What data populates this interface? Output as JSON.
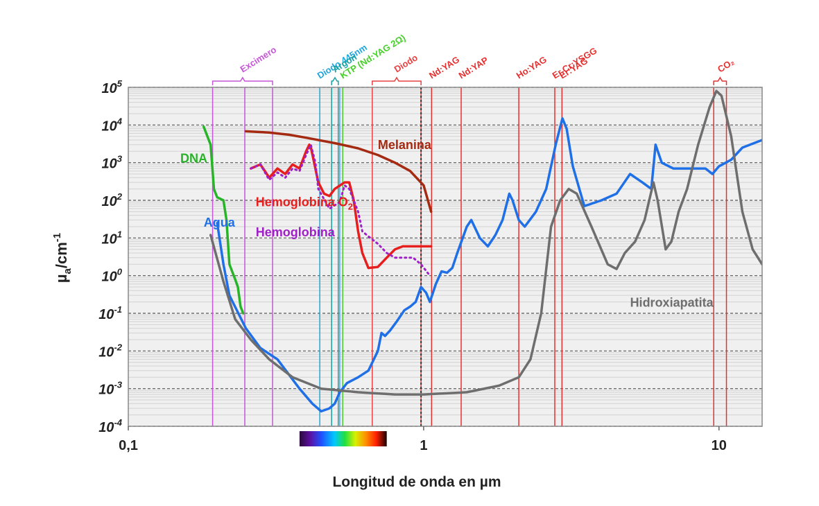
{
  "chart_data": {
    "type": "line",
    "title": "",
    "xlabel": "Longitud de onda en µm",
    "ylabel": "µa/cm-1",
    "ylabel_parts": {
      "mu": "µ",
      "sub": "a",
      "unit": "/cm",
      "sup": "-1"
    },
    "x_scale": "log",
    "y_scale": "log",
    "xlim": [
      0.1,
      14
    ],
    "ylim": [
      0.0001,
      100000
    ],
    "grid": true,
    "x_ticks": [
      {
        "value": 0.1,
        "label": "0,1"
      },
      {
        "value": 1,
        "label": "1"
      },
      {
        "value": 10,
        "label": "10"
      }
    ],
    "y_ticks": [
      {
        "value": 100000,
        "base": "10",
        "exp": "5"
      },
      {
        "value": 10000,
        "base": "10",
        "exp": "4"
      },
      {
        "value": 1000,
        "base": "10",
        "exp": "3"
      },
      {
        "value": 100,
        "base": "10",
        "exp": "2"
      },
      {
        "value": 10,
        "base": "10",
        "exp": "1"
      },
      {
        "value": 1,
        "base": "10",
        "exp": "0"
      },
      {
        "value": 0.1,
        "base": "10",
        "exp": "-1"
      },
      {
        "value": 0.01,
        "base": "10",
        "exp": "-2"
      },
      {
        "value": 0.001,
        "base": "10",
        "exp": "-3"
      },
      {
        "value": 0.0001,
        "base": "10",
        "exp": "-4"
      }
    ],
    "series": [
      {
        "name": "Agua",
        "color": "#1f6fe6",
        "style": "solid",
        "points": [
          [
            0.2,
            25
          ],
          [
            0.21,
            2
          ],
          [
            0.22,
            0.3
          ],
          [
            0.25,
            0.04
          ],
          [
            0.28,
            0.012
          ],
          [
            0.32,
            0.006
          ],
          [
            0.38,
            0.001
          ],
          [
            0.42,
            0.0004
          ],
          [
            0.45,
            0.00025
          ],
          [
            0.48,
            0.0003
          ],
          [
            0.5,
            0.0004
          ],
          [
            0.52,
            0.0008
          ],
          [
            0.55,
            0.0014
          ],
          [
            0.6,
            0.002
          ],
          [
            0.65,
            0.003
          ],
          [
            0.7,
            0.01
          ],
          [
            0.72,
            0.03
          ],
          [
            0.74,
            0.025
          ],
          [
            0.77,
            0.035
          ],
          [
            0.81,
            0.06
          ],
          [
            0.86,
            0.12
          ],
          [
            0.9,
            0.15
          ],
          [
            0.94,
            0.2
          ],
          [
            0.98,
            0.5
          ],
          [
            1.02,
            0.35
          ],
          [
            1.05,
            0.2
          ],
          [
            1.1,
            0.6
          ],
          [
            1.15,
            1.3
          ],
          [
            1.2,
            1.2
          ],
          [
            1.25,
            1.6
          ],
          [
            1.3,
            4
          ],
          [
            1.4,
            20
          ],
          [
            1.45,
            30
          ],
          [
            1.55,
            10
          ],
          [
            1.65,
            6
          ],
          [
            1.75,
            12
          ],
          [
            1.85,
            30
          ],
          [
            1.95,
            150
          ],
          [
            2.0,
            100
          ],
          [
            2.1,
            30
          ],
          [
            2.2,
            20
          ],
          [
            2.4,
            50
          ],
          [
            2.6,
            200
          ],
          [
            2.8,
            3000
          ],
          [
            2.95,
            15000
          ],
          [
            3.05,
            8000
          ],
          [
            3.2,
            800
          ],
          [
            3.5,
            70
          ],
          [
            4.0,
            100
          ],
          [
            4.5,
            150
          ],
          [
            5.0,
            500
          ],
          [
            5.5,
            300
          ],
          [
            5.9,
            200
          ],
          [
            6.1,
            3000
          ],
          [
            6.4,
            1000
          ],
          [
            7.0,
            700
          ],
          [
            8.0,
            700
          ],
          [
            9.0,
            700
          ],
          [
            9.5,
            500
          ],
          [
            10,
            800
          ],
          [
            11,
            1200
          ],
          [
            12,
            2500
          ],
          [
            14,
            4000
          ]
        ]
      },
      {
        "name": "Hidroxiapatita",
        "color": "#6e6e6e",
        "style": "solid",
        "points": [
          [
            0.19,
            12
          ],
          [
            0.21,
            0.7
          ],
          [
            0.23,
            0.07
          ],
          [
            0.26,
            0.02
          ],
          [
            0.3,
            0.006
          ],
          [
            0.36,
            0.002
          ],
          [
            0.45,
            0.001
          ],
          [
            0.6,
            0.0008
          ],
          [
            0.8,
            0.0007
          ],
          [
            1.0,
            0.0007
          ],
          [
            1.4,
            0.0008
          ],
          [
            1.8,
            0.0012
          ],
          [
            2.1,
            0.002
          ],
          [
            2.3,
            0.006
          ],
          [
            2.5,
            0.1
          ],
          [
            2.7,
            20
          ],
          [
            2.9,
            100
          ],
          [
            3.1,
            200
          ],
          [
            3.3,
            150
          ],
          [
            3.7,
            20
          ],
          [
            4.2,
            2
          ],
          [
            4.5,
            1.5
          ],
          [
            4.8,
            4
          ],
          [
            5.2,
            8
          ],
          [
            5.6,
            30
          ],
          [
            6.0,
            300
          ],
          [
            6.2,
            100
          ],
          [
            6.6,
            5
          ],
          [
            6.9,
            8
          ],
          [
            7.3,
            50
          ],
          [
            7.8,
            200
          ],
          [
            8.5,
            3000
          ],
          [
            9.3,
            30000
          ],
          [
            9.8,
            80000
          ],
          [
            10.2,
            60000
          ],
          [
            11,
            5000
          ],
          [
            12,
            50
          ],
          [
            13,
            5
          ],
          [
            14,
            2
          ]
        ]
      },
      {
        "name": "DNA",
        "color": "#28b428",
        "style": "solid",
        "points": [
          [
            0.18,
            9000
          ],
          [
            0.19,
            3000
          ],
          [
            0.195,
            200
          ],
          [
            0.2,
            120
          ],
          [
            0.21,
            100
          ],
          [
            0.215,
            30
          ],
          [
            0.22,
            2
          ],
          [
            0.23,
            0.8
          ],
          [
            0.235,
            0.5
          ],
          [
            0.24,
            0.15
          ],
          [
            0.245,
            0.1
          ]
        ]
      },
      {
        "name": "Melanina",
        "color": "#a52a12",
        "style": "solid",
        "points": [
          [
            0.25,
            6800
          ],
          [
            0.3,
            6300
          ],
          [
            0.35,
            5500
          ],
          [
            0.4,
            4600
          ],
          [
            0.5,
            3300
          ],
          [
            0.6,
            2400
          ],
          [
            0.7,
            1600
          ],
          [
            0.8,
            1000
          ],
          [
            0.9,
            600
          ],
          [
            1.0,
            250
          ],
          [
            1.06,
            50
          ]
        ]
      },
      {
        "name": "Hemoglobina O2",
        "color": "#e61e1e",
        "style": "solid",
        "points": [
          [
            0.26,
            700
          ],
          [
            0.28,
            900
          ],
          [
            0.29,
            600
          ],
          [
            0.3,
            400
          ],
          [
            0.32,
            700
          ],
          [
            0.34,
            500
          ],
          [
            0.36,
            900
          ],
          [
            0.38,
            700
          ],
          [
            0.4,
            2000
          ],
          [
            0.41,
            3000
          ],
          [
            0.415,
            2600
          ],
          [
            0.43,
            700
          ],
          [
            0.44,
            300
          ],
          [
            0.46,
            150
          ],
          [
            0.48,
            130
          ],
          [
            0.5,
            200
          ],
          [
            0.54,
            300
          ],
          [
            0.56,
            300
          ],
          [
            0.58,
            100
          ],
          [
            0.6,
            15
          ],
          [
            0.62,
            4
          ],
          [
            0.65,
            1.6
          ],
          [
            0.7,
            1.7
          ],
          [
            0.75,
            3
          ],
          [
            0.8,
            5
          ],
          [
            0.85,
            6
          ],
          [
            0.9,
            6
          ],
          [
            1.0,
            6
          ],
          [
            1.06,
            6
          ]
        ]
      },
      {
        "name": "Hemoglobina",
        "color": "#a020c8",
        "style": "dotted",
        "points": [
          [
            0.26,
            700
          ],
          [
            0.28,
            900
          ],
          [
            0.3,
            350
          ],
          [
            0.32,
            550
          ],
          [
            0.34,
            400
          ],
          [
            0.36,
            700
          ],
          [
            0.38,
            600
          ],
          [
            0.4,
            1600
          ],
          [
            0.415,
            3000
          ],
          [
            0.43,
            1000
          ],
          [
            0.44,
            200
          ],
          [
            0.48,
            60
          ],
          [
            0.52,
            90
          ],
          [
            0.54,
            250
          ],
          [
            0.56,
            200
          ],
          [
            0.6,
            50
          ],
          [
            0.62,
            15
          ],
          [
            0.66,
            10
          ],
          [
            0.7,
            7
          ],
          [
            0.75,
            4
          ],
          [
            0.8,
            3
          ],
          [
            0.86,
            3
          ],
          [
            0.92,
            3
          ],
          [
            0.98,
            2
          ],
          [
            1.05,
            1
          ]
        ]
      }
    ],
    "series_labels": [
      {
        "text": "Agua",
        "color": "#1f6fe6",
        "x": 0.18,
        "y": 20,
        "bold": true,
        "size": "large"
      },
      {
        "text": "Hidroxiapatita",
        "color": "#6e6e6e",
        "x": 5.0,
        "y": 0.15,
        "bold": true,
        "size": "large"
      },
      {
        "text": "DNA",
        "color": "#28b428",
        "x": 0.15,
        "y": 1000,
        "bold": true,
        "size": "large"
      },
      {
        "text": "Melanina",
        "color": "#a52a12",
        "x": 0.7,
        "y": 2300,
        "bold": true,
        "size": "large"
      },
      {
        "text": "Hemoglobina O",
        "sub": "2",
        "color": "#e61e1e",
        "x": 0.27,
        "y": 70,
        "bold": true,
        "size": "large"
      },
      {
        "text": "Hemoglobina",
        "color": "#a020c8",
        "x": 0.27,
        "y": 11,
        "bold": true,
        "size": "large"
      }
    ],
    "lasers": [
      {
        "label": "Excimero",
        "color": "#c455d6",
        "lines": [
          0.193,
          0.248,
          0.308
        ],
        "bracket": true
      },
      {
        "label": "Diodo 445nm",
        "color": "#1ea6dc",
        "lines": [
          0.445
        ],
        "bracket": false
      },
      {
        "label": "Argon",
        "color": "#1aa0a0",
        "lines": [
          0.488,
          0.514
        ],
        "bracket": true
      },
      {
        "label": "KTP (Nd:YAG 2Ω)",
        "color": "#44d026",
        "lines": [
          0.532
        ],
        "bracket": false
      },
      {
        "label": "Diodo",
        "color": "#e64040",
        "lines": [
          0.67,
          0.98
        ],
        "bracket": true
      },
      {
        "label": "Nd:YAG",
        "color": "#e63030",
        "lines": [
          1.064
        ],
        "bracket": false
      },
      {
        "label": "Nd:YAP",
        "color": "#e63030",
        "lines": [
          1.34
        ],
        "bracket": false
      },
      {
        "label": "Ho:YAG",
        "color": "#e63030",
        "lines": [
          2.1
        ],
        "bracket": false
      },
      {
        "label": "Er,Cr:YSGG",
        "color": "#e63030",
        "lines": [
          2.78
        ],
        "bracket": false
      },
      {
        "label": "Er:YAG",
        "color": "#e63030",
        "lines": [
          2.94
        ],
        "bracket": false
      },
      {
        "label": "CO₂",
        "color": "#e63030",
        "lines": [
          9.6,
          10.6
        ],
        "bracket": true
      }
    ],
    "extra_vlines": [
      {
        "x": 0.52,
        "color": "#5aa0ff"
      },
      {
        "x": 0.98,
        "color": "#333333",
        "dashed": true
      }
    ],
    "spectrum_bar": {
      "from": 0.38,
      "to": 0.75
    },
    "plot_background": "#f0f0f0"
  }
}
